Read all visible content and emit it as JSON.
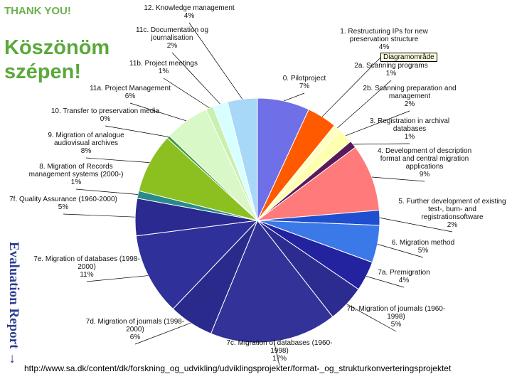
{
  "header": {
    "thanks": "THANK YOU!",
    "koszonom_line1": "Köszönöm",
    "koszonom_line2": "szépen!"
  },
  "side_label": "Evaluation Report",
  "arrow_glyph": "→",
  "tooltip": "Diagramområde",
  "footer_url": "http://www.sa.dk/content/dk/forskning_og_udvikling/udviklingsprojekter/format-_og_strukturkonverteringsprojektet",
  "chart_data": {
    "type": "pie",
    "slices": [
      {
        "label": [
          "0. Pilotproject",
          "7%"
        ],
        "value": 7,
        "color": "#6f6fe8"
      },
      {
        "label": [
          "1. Restructuring IPs for new",
          "preservation structure",
          "4%"
        ],
        "value": 4,
        "color": "#ff5a00"
      },
      {
        "label": [
          "2a. Scanning programs",
          "1%"
        ],
        "value": 1,
        "color": "#ffffc0"
      },
      {
        "label": [
          "2b. Scanning preparation and",
          "management",
          "2%"
        ],
        "value": 2,
        "color": "#ffffb0"
      },
      {
        "label": [
          "3. Registration in archival",
          "databases",
          "1%"
        ],
        "value": 1,
        "color": "#5a1a5a"
      },
      {
        "label": [
          "4. Development of description",
          "format and central migration",
          "applications",
          "9%"
        ],
        "value": 9,
        "color": "#ff7a7a"
      },
      {
        "label": [
          "5. Further development of existing",
          "test-, burn- and",
          "registrationsoftware",
          "2%"
        ],
        "value": 2,
        "color": "#1f4fcf"
      },
      {
        "label": [
          "6. Migration method",
          "5%"
        ],
        "value": 5,
        "color": "#3b78e8"
      },
      {
        "label": [
          "7a. Premigration",
          "4%"
        ],
        "value": 4,
        "color": "#2323a0"
      },
      {
        "label": [
          "7b. Migration of journals (1960-",
          "1998)",
          "5%"
        ],
        "value": 5,
        "color": "#2c2c90"
      },
      {
        "label": [
          "7c. Migration of databases (1960-",
          "1998)",
          "17%"
        ],
        "value": 17,
        "color": "#323298"
      },
      {
        "label": [
          "7d. Migration of journals (1998-",
          "2000)",
          "6%"
        ],
        "value": 6,
        "color": "#2a2a8c"
      },
      {
        "label": [
          "7e. Migration of databases (1998-",
          "2000)",
          "11%"
        ],
        "value": 11,
        "color": "#30309a"
      },
      {
        "label": [
          "7f. Quality Assurance (1960-2000)",
          "5%"
        ],
        "value": 5,
        "color": "#2a2a90"
      },
      {
        "label": [
          "8. Migration of Records",
          "management systems (2000-)",
          "1%"
        ],
        "value": 1,
        "color": "#2a8a8a"
      },
      {
        "label": [
          "9. Migration of analogue",
          "audiovisual archives",
          "8%"
        ],
        "value": 8,
        "color": "#8cc020"
      },
      {
        "label": [
          "10. Transfer to preservation media",
          "0%"
        ],
        "value": 0.4,
        "color": "#3a9a3a"
      },
      {
        "label": [
          "11a. Project Management",
          "6%"
        ],
        "value": 6,
        "color": "#d8f8c8"
      },
      {
        "label": [
          "11b. Project meetings",
          "1%"
        ],
        "value": 1,
        "color": "#c8f0b0"
      },
      {
        "label": [
          "11c. Documentation og",
          "journalisation",
          "2%"
        ],
        "value": 2,
        "color": "#d8ffff"
      },
      {
        "label": [
          "12. Knowledge management",
          "4%"
        ],
        "value": 4,
        "color": "#a8d8f8"
      }
    ]
  }
}
